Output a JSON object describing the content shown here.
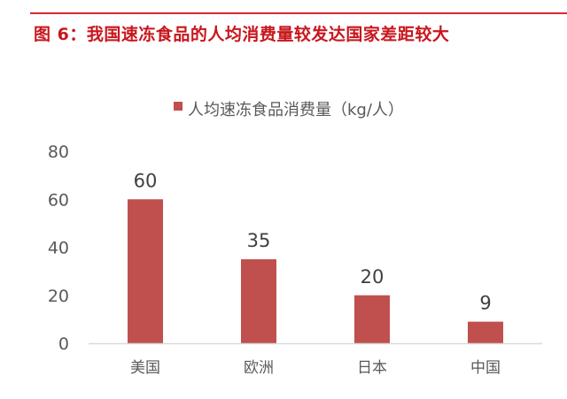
{
  "figure_title": "图 6：我国速冻食品的人均消费量较发达国家差距较大",
  "chart_data": {
    "type": "bar",
    "title": "",
    "categories": [
      "美国",
      "欧洲",
      "日本",
      "中国"
    ],
    "series": [
      {
        "name": "人均速冻食品消费量（kg/人）",
        "values": [
          60,
          35,
          20,
          9
        ],
        "color": "#c0504d"
      }
    ],
    "data_labels": [
      "60",
      "35",
      "20",
      "9"
    ],
    "ylim": [
      0,
      80
    ],
    "yticks": [
      "0",
      "20",
      "40",
      "60",
      "80"
    ],
    "xlabel": "",
    "ylabel": "",
    "grid": false,
    "legend": "top"
  }
}
